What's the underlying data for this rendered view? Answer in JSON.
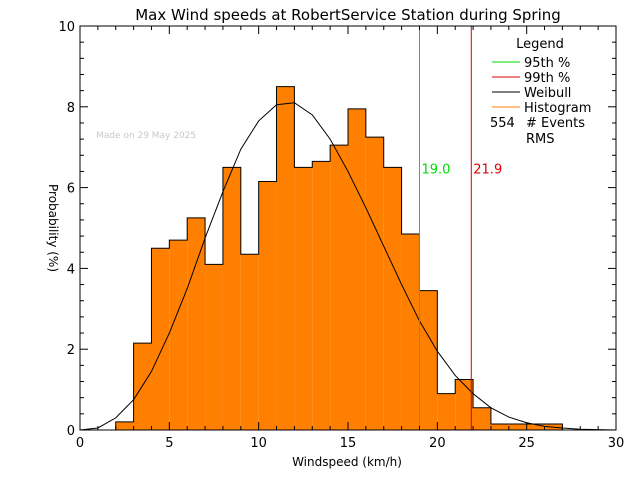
{
  "chart_data": {
    "type": "bar",
    "title": "Max Wind speeds at RobertService Station during Spring",
    "xlabel": "Windspeed (km/h)",
    "ylabel": "Probability  (%)",
    "xlim": [
      0,
      30
    ],
    "ylim": [
      0,
      10
    ],
    "x_ticks": [
      0,
      5,
      10,
      15,
      20,
      25,
      30
    ],
    "y_ticks": [
      0,
      2,
      4,
      6,
      8,
      10
    ],
    "bin_width": 1,
    "histogram": {
      "name": "Histogram",
      "color": "#ff7f00",
      "bins": [
        {
          "start": 2,
          "value": 0.2
        },
        {
          "start": 3,
          "value": 2.15
        },
        {
          "start": 4,
          "value": 4.5
        },
        {
          "start": 5,
          "value": 4.7
        },
        {
          "start": 6,
          "value": 5.25
        },
        {
          "start": 7,
          "value": 4.1
        },
        {
          "start": 8,
          "value": 6.5
        },
        {
          "start": 9,
          "value": 4.35
        },
        {
          "start": 10,
          "value": 6.15
        },
        {
          "start": 11,
          "value": 8.5
        },
        {
          "start": 12,
          "value": 6.5
        },
        {
          "start": 13,
          "value": 6.65
        },
        {
          "start": 14,
          "value": 7.05
        },
        {
          "start": 15,
          "value": 7.95
        },
        {
          "start": 16,
          "value": 7.25
        },
        {
          "start": 17,
          "value": 6.5
        },
        {
          "start": 18,
          "value": 4.85
        },
        {
          "start": 19,
          "value": 3.45
        },
        {
          "start": 20,
          "value": 0.9
        },
        {
          "start": 21,
          "value": 1.25
        },
        {
          "start": 22,
          "value": 0.55
        },
        {
          "start": 23,
          "value": 0.15
        },
        {
          "start": 24,
          "value": 0.15
        },
        {
          "start": 25,
          "value": 0.15
        },
        {
          "start": 26,
          "value": 0.15
        }
      ]
    },
    "weibull": {
      "name": "Weibull",
      "color": "#000000",
      "points": [
        [
          0,
          0
        ],
        [
          1,
          0.05
        ],
        [
          2,
          0.3
        ],
        [
          3,
          0.75
        ],
        [
          4,
          1.45
        ],
        [
          5,
          2.4
        ],
        [
          6,
          3.5
        ],
        [
          7,
          4.75
        ],
        [
          8,
          5.9
        ],
        [
          9,
          6.95
        ],
        [
          10,
          7.65
        ],
        [
          11,
          8.05
        ],
        [
          12,
          8.1
        ],
        [
          13,
          7.8
        ],
        [
          14,
          7.2
        ],
        [
          15,
          6.4
        ],
        [
          16,
          5.5
        ],
        [
          17,
          4.55
        ],
        [
          18,
          3.6
        ],
        [
          19,
          2.7
        ],
        [
          20,
          1.95
        ],
        [
          21,
          1.35
        ],
        [
          22,
          0.9
        ],
        [
          23,
          0.55
        ],
        [
          24,
          0.32
        ],
        [
          25,
          0.18
        ],
        [
          26,
          0.09
        ],
        [
          27,
          0.05
        ],
        [
          28,
          0.02
        ],
        [
          29,
          0.01
        ],
        [
          30,
          0
        ]
      ]
    },
    "percentile_lines": [
      {
        "name": "95th %",
        "x": 19.0,
        "label": "19.0",
        "color": "#00dd00"
      },
      {
        "name": "99th %",
        "x": 21.9,
        "label": "21.9",
        "color": "#dd0000"
      }
    ],
    "legend": {
      "title": "Legend",
      "placement": "top-right",
      "entries": [
        {
          "label": "95th %",
          "color": "#00dd00"
        },
        {
          "label": "99th %",
          "color": "#dd0000"
        },
        {
          "label": "Weibull",
          "color": "#000000"
        },
        {
          "label": "Histogram",
          "color": "#ff7f00"
        }
      ],
      "events_count": "554",
      "events_label": "# Events",
      "rms_label": "RMS"
    },
    "annotation": "Made on 29 May 2025",
    "annotation_color": "#c8c8c8",
    "grid": false
  }
}
